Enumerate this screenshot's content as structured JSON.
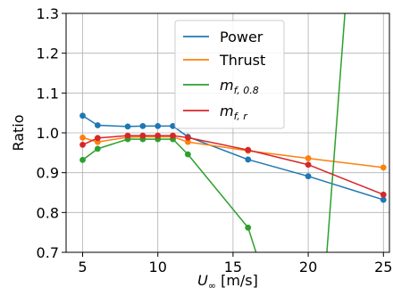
{
  "chart_data": {
    "type": "line",
    "title": "",
    "xlabel_symbol": "U",
    "xlabel_subscript": "∞",
    "xlabel_unit": " [m/s]",
    "ylabel": "Ratio",
    "xlim": [
      3.9,
      25.4
    ],
    "ylim": [
      0.7,
      1.3
    ],
    "x_ticks": [
      5,
      10,
      15,
      20,
      25
    ],
    "y_ticks": [
      0.7,
      0.8,
      0.9,
      1.0,
      1.1,
      1.2,
      1.3
    ],
    "x_tick_labels": [
      "5",
      "10",
      "15",
      "20",
      "25"
    ],
    "y_tick_labels": [
      "0.7",
      "0.8",
      "0.9",
      "1.0",
      "1.1",
      "1.2",
      "1.3"
    ],
    "grid": true,
    "legend_position": "top-center",
    "series": [
      {
        "name": "Power",
        "name_subscript": "",
        "color": "#1f77b4",
        "x": [
          5,
          6,
          8,
          9,
          10,
          11,
          12,
          16,
          20,
          25
        ],
        "y": [
          1.043,
          1.019,
          1.016,
          1.017,
          1.017,
          1.017,
          0.99,
          0.933,
          0.891,
          0.832
        ],
        "marker_x": [
          5,
          6,
          8,
          9,
          10,
          11,
          12,
          16,
          20,
          25
        ]
      },
      {
        "name": "Thrust",
        "name_subscript": "",
        "color": "#ff7f0e",
        "x": [
          5,
          6,
          8,
          9,
          10,
          11,
          12,
          16,
          20,
          25
        ],
        "y": [
          0.988,
          0.977,
          0.989,
          0.99,
          0.99,
          0.99,
          0.977,
          0.955,
          0.936,
          0.913
        ],
        "marker_x": [
          5,
          6,
          8,
          9,
          10,
          11,
          12,
          16,
          20,
          25
        ]
      },
      {
        "name": "m",
        "name_subscript": "f, 0.8",
        "color": "#2ca02c",
        "x": [
          5,
          6,
          8,
          9,
          10,
          11,
          12,
          16,
          16.7,
          21.2,
          22.5
        ],
        "y": [
          0.932,
          0.96,
          0.984,
          0.984,
          0.984,
          0.984,
          0.946,
          0.762,
          0.68,
          0.68,
          1.33
        ],
        "marker_x": [
          5,
          6,
          8,
          9,
          10,
          11,
          12,
          16
        ]
      },
      {
        "name": "m",
        "name_subscript": "f, r",
        "color": "#d62728",
        "x": [
          5,
          6,
          8,
          9,
          10,
          11,
          12,
          16,
          20,
          25
        ],
        "y": [
          0.97,
          0.987,
          0.993,
          0.993,
          0.993,
          0.993,
          0.988,
          0.957,
          0.92,
          0.845
        ],
        "marker_x": [
          5,
          6,
          8,
          9,
          10,
          11,
          12,
          16,
          20,
          25
        ]
      }
    ]
  }
}
